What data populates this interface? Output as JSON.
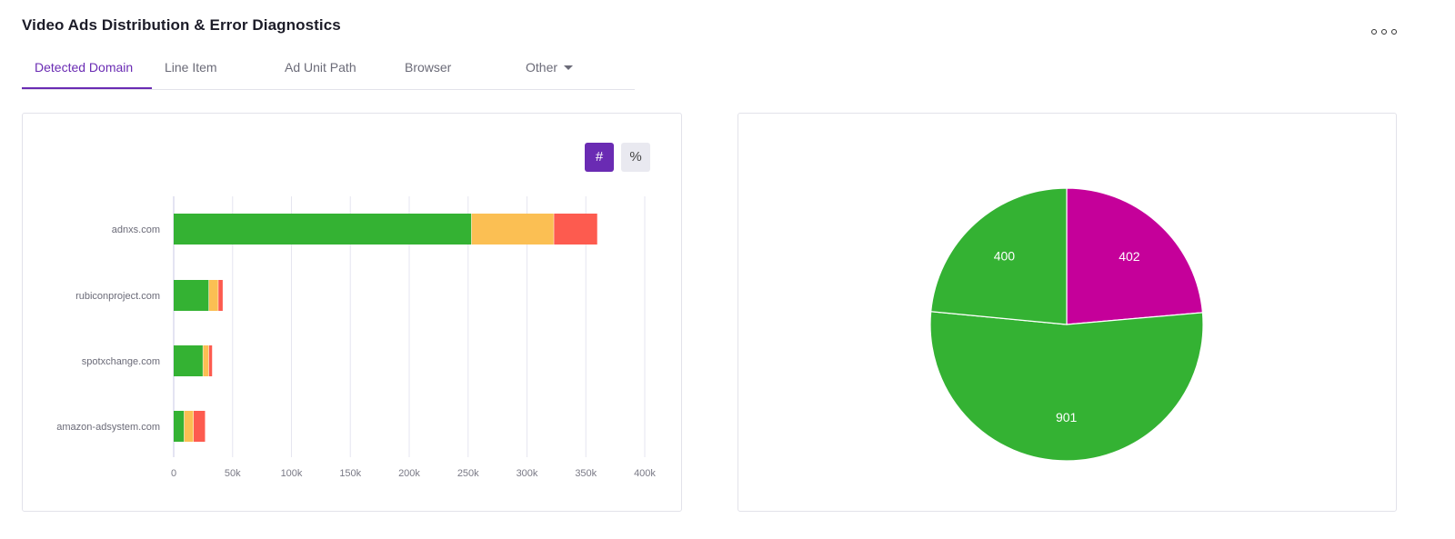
{
  "header": {
    "title": "Video Ads Distribution & Error Diagnostics"
  },
  "tabs": [
    {
      "label": "Detected Domain",
      "active": true
    },
    {
      "label": "Line Item",
      "active": false
    },
    {
      "label": "Ad Unit Path",
      "active": false
    },
    {
      "label": "Browser",
      "active": false
    },
    {
      "label": "Other",
      "active": false,
      "dropdown": true
    }
  ],
  "toolbar": {
    "count_label": "#",
    "percent_label": "%",
    "selected": "count"
  },
  "colors": {
    "accent": "#6a2bb3",
    "success": "#34b233",
    "warning": "#fbbf53",
    "error": "#fd5b4f",
    "magenta": "#c5009a"
  },
  "chart_data": [
    {
      "type": "bar",
      "orientation": "horizontal",
      "stacked": true,
      "categories": [
        "adnxs.com",
        "rubiconproject.com",
        "spotxchange.com",
        "amazon-adsystem.com"
      ],
      "series": [
        {
          "color": "#34b233",
          "values": [
            253000,
            30000,
            25000,
            9000
          ]
        },
        {
          "color": "#fbbf53",
          "values": [
            70000,
            8000,
            5000,
            8000
          ]
        },
        {
          "color": "#fd5b4f",
          "values": [
            37000,
            4000,
            3000,
            10000
          ]
        }
      ],
      "xticks": [
        "0",
        "50k",
        "100k",
        "150k",
        "200k",
        "250k",
        "300k",
        "350k",
        "400k"
      ],
      "xlim": [
        0,
        400000
      ],
      "grid": true
    },
    {
      "type": "pie",
      "slices": [
        {
          "value": 402,
          "label": "402",
          "color": "#c5009a"
        },
        {
          "value": 901,
          "label": "901",
          "color": "#34b233"
        },
        {
          "value": 400,
          "label": "400",
          "color": "#34b233"
        }
      ],
      "pixel_angles_note": "slices drawn clockwise from top"
    }
  ]
}
